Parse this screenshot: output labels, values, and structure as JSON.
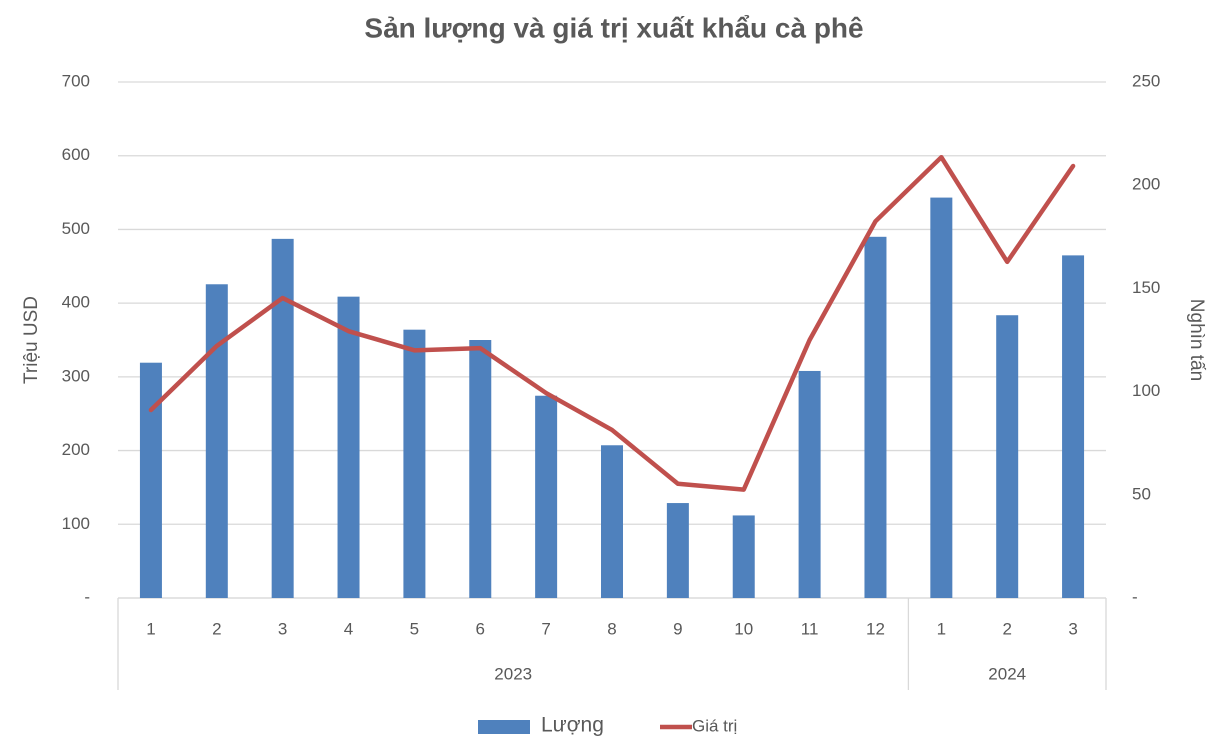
{
  "chart_data": {
    "type": "bar-line",
    "title": "Sản lượng và giá trị xuất khẩu cà phê",
    "ylabel": "Triệu USD",
    "y2label": "Nghìn tấn",
    "groups": [
      {
        "label": "2023",
        "categories": [
          "1",
          "2",
          "3",
          "4",
          "5",
          "6",
          "7",
          "8",
          "9",
          "10",
          "11",
          "12"
        ]
      },
      {
        "label": "2024",
        "categories": [
          "1",
          "2",
          "3"
        ]
      }
    ],
    "series": [
      {
        "name": "Lượng",
        "type": "bar",
        "axis": "y2",
        "color": "#4f81bd",
        "values": [
          114,
          152,
          174,
          146,
          130,
          125,
          98,
          74,
          46,
          40,
          110,
          175,
          194,
          137,
          166
        ]
      },
      {
        "name": "Giá trị",
        "type": "line",
        "axis": "y",
        "color": "#c0504d",
        "values": [
          255,
          342,
          407,
          362,
          336,
          339,
          278,
          228,
          155,
          147,
          350,
          511,
          598,
          456,
          586
        ]
      }
    ],
    "ylim": [
      0,
      700
    ],
    "yticks": [
      {
        "value": 0,
        "label": "-"
      },
      100,
      200,
      300,
      400,
      500,
      600,
      700
    ],
    "y2lim": [
      0,
      250
    ],
    "y2ticks": [
      {
        "value": 0,
        "label": "-"
      },
      50,
      100,
      150,
      200,
      250
    ],
    "grid": true,
    "legend": "bottom"
  }
}
